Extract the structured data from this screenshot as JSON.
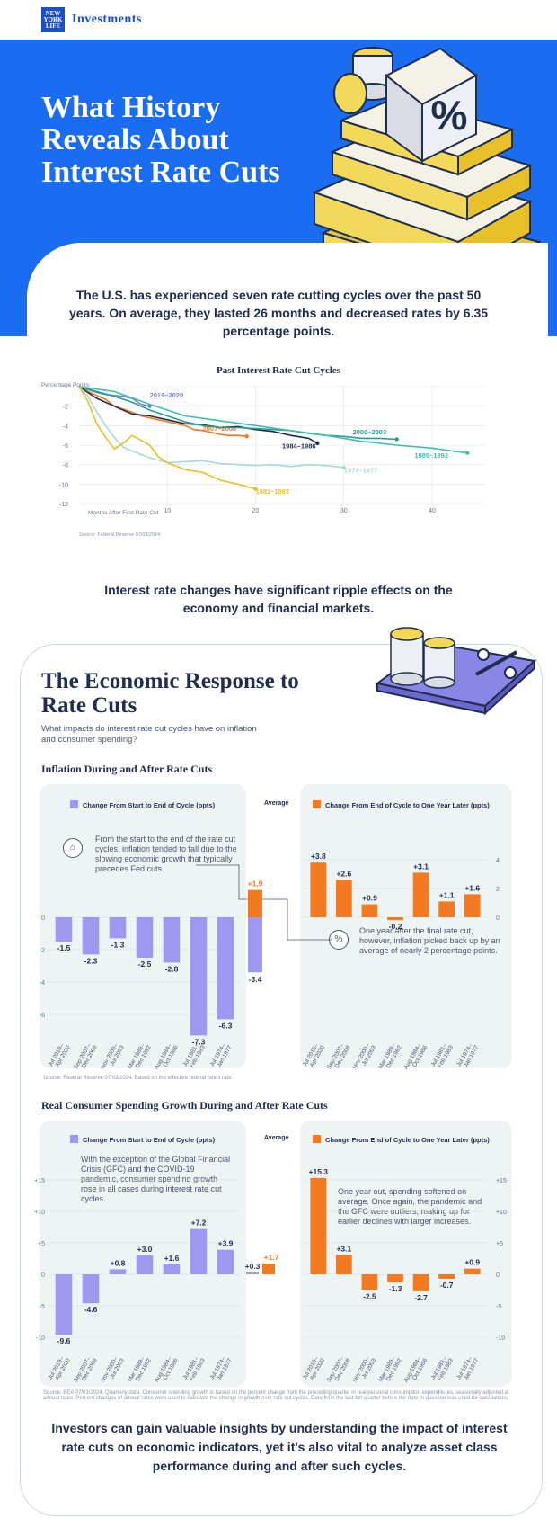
{
  "header": {
    "logo_text": "NEW YORK LIFE",
    "brand": "Investments"
  },
  "hero": {
    "title": "What History Reveals About Interest Rate Cuts"
  },
  "intro": {
    "text": "The U.S. has experienced seven rate cutting cycles over the past 50 years. On average, they lasted 26 months and decreased rates by 6.35 percentage points."
  },
  "ripple": {
    "text": "Interest rate changes have significant ripple effects on the economy and financial markets."
  },
  "economic": {
    "title": "The Economic Response to Rate Cuts",
    "subtitle": "What impacts do interest rate cut cycles have on inflation and consumer spending?"
  },
  "inflation": {
    "section_title": "Inflation During and After Rate Cuts",
    "left_legend": "Change From Start to End of Cycle (ppts)",
    "avg_legend": "Average",
    "right_legend": "Change From End of Cycle to One Year Later (ppts)",
    "annotation_left": "From the start to the end of the rate cut cycles, inflation tended to fall due to the slowing economic growth that typically precedes Fed cuts.",
    "annotation_right": "One year after the final rate cut, however, inflation picked back up by an average of nearly 2 percentage points.",
    "source": "Source: Federal Reserve 07/03/2024. Based on the effective federal funds rate."
  },
  "spending": {
    "section_title": "Real Consumer Spending Growth During and After Rate Cuts",
    "left_legend": "Change From Start to End of Cycle (ppts)",
    "avg_legend": "Average",
    "right_legend": "Change From End of Cycle to One Year Later (ppts)",
    "annotation_left": "With the exception of the Global Financial Crisis (GFC) and the COVID-19 pandemic, consumer spending growth rose in all cases during interest rate cut cycles.",
    "annotation_right": "One year out, spending softened on average. Once again, the pandemic and the GFC were outliers, making up for earlier declines with larger increases.",
    "source": "Source: BEA 07/03/2024. Quarterly data. Consumer spending growth is based on the percent change from the preceding quarter in real personal consumption expenditures, seasonally adjusted at annual rates. Percent changes of annual rates were used to calculate the change in growth over rate cut cycles. Data from the last full quarter before the date in question was used for calculations."
  },
  "bottom": {
    "text": "Investors can gain valuable insights by understanding the impact of interest rate cuts on economic indicators, yet it's also vital to analyze asset class performance during and after such cycles."
  },
  "colors": {
    "blue": "#1a6df0",
    "purple": "#9e99ee",
    "orange": "#f37a20",
    "teal": "#2ba89c"
  },
  "chart_data": [
    {
      "type": "line",
      "title": "Past Interest Rate Cut Cycles",
      "ylabel": "Percentage Points",
      "xlabel": "Months After First Rate Cut",
      "source": "Source: Federal Reserve 07/03/2024",
      "xlim": [
        0,
        46
      ],
      "ylim": [
        -12,
        0
      ],
      "xticks": [
        10,
        20,
        30,
        40
      ],
      "yticks": [
        -2,
        -4,
        -6,
        -8,
        -10,
        -12
      ],
      "series": [
        {
          "name": "2019–2020",
          "color": "#7d7fd6",
          "x": [
            0,
            1,
            2,
            3,
            4,
            5,
            6,
            7,
            8
          ],
          "y": [
            0,
            -0.3,
            -0.6,
            -0.8,
            -0.9,
            -1.0,
            -1.2,
            -1.8,
            -2.0
          ]
        },
        {
          "name": "2007–2008",
          "color": "#f37a20",
          "x": [
            0,
            1,
            2,
            3,
            4,
            5,
            6,
            7,
            8,
            9,
            10,
            11,
            12,
            13,
            14,
            15,
            16,
            17,
            18,
            19
          ],
          "y": [
            0,
            -0.5,
            -0.9,
            -1.3,
            -2.0,
            -2.3,
            -2.6,
            -3.0,
            -3.2,
            -3.4,
            -3.6,
            -3.8,
            -4.0,
            -4.4,
            -4.5,
            -4.7,
            -4.9,
            -5.0,
            -5.0,
            -5.1
          ]
        },
        {
          "name": "1984–1986",
          "color": "#1f2d4f",
          "x": [
            0,
            2,
            4,
            6,
            8,
            10,
            12,
            14,
            16,
            18,
            20,
            22,
            24,
            26,
            27
          ],
          "y": [
            0,
            -1.2,
            -2.0,
            -2.8,
            -3.0,
            -3.4,
            -3.8,
            -3.9,
            -4.2,
            -4.1,
            -4.4,
            -4.6,
            -5.0,
            -5.3,
            -5.8
          ]
        },
        {
          "name": "2000–2003",
          "color": "#2a9d8f",
          "x": [
            0,
            2,
            4,
            6,
            8,
            10,
            12,
            14,
            16,
            18,
            20,
            22,
            24,
            26,
            28,
            30,
            32,
            34,
            36
          ],
          "y": [
            0,
            -0.5,
            -1.0,
            -1.6,
            -2.4,
            -3.0,
            -3.6,
            -4.0,
            -4.2,
            -4.2,
            -4.3,
            -4.4,
            -4.5,
            -4.8,
            -5.0,
            -5.1,
            -5.3,
            -5.3,
            -5.4
          ]
        },
        {
          "name": "1989–1992",
          "color": "#3dbfb0",
          "x": [
            0,
            4,
            8,
            12,
            16,
            20,
            24,
            28,
            32,
            36,
            40,
            44
          ],
          "y": [
            0,
            -0.5,
            -1.8,
            -3.0,
            -3.5,
            -4.0,
            -4.5,
            -5.0,
            -5.6,
            -6.0,
            -6.3,
            -6.8
          ]
        },
        {
          "name": "1974–1977",
          "color": "#a8d8dc",
          "x": [
            0,
            1,
            2,
            3,
            4,
            5,
            6,
            8,
            10,
            12,
            14,
            16,
            18,
            20,
            22,
            24,
            26,
            28,
            30
          ],
          "y": [
            0,
            -1.0,
            -2.6,
            -4.0,
            -5.2,
            -6.2,
            -6.6,
            -7.3,
            -7.8,
            -7.7,
            -7.6,
            -7.9,
            -8.0,
            -8.1,
            -8.0,
            -8.2,
            -8.0,
            -8.1,
            -8.3
          ]
        },
        {
          "name": "1981–1983",
          "color": "#e8c12a",
          "x": [
            0,
            1,
            2,
            3,
            4,
            5,
            6,
            7,
            8,
            9,
            10,
            12,
            14,
            16,
            18,
            20
          ],
          "y": [
            0,
            -1.5,
            -3.8,
            -5.2,
            -6.4,
            -5.8,
            -5.0,
            -5.5,
            -6.0,
            -7.2,
            -7.8,
            -8.5,
            -8.8,
            -9.6,
            -10.0,
            -10.5
          ]
        }
      ]
    },
    {
      "type": "bar",
      "title": "Inflation During and After Rate Cuts",
      "categories": [
        "Jul 2019–Apr 2020",
        "Sep 2007–Dec 2008",
        "Nov 2000–Jul 2003",
        "Mar 1989–Dec 1992",
        "Aug 1984–Oct 1986",
        "Jul 1981–Feb 1983",
        "Jul 1974–Jan 1977"
      ],
      "series": [
        {
          "name": "Change From Start to End of Cycle (ppts)",
          "values": [
            -1.5,
            -2.3,
            -1.3,
            -2.5,
            -2.8,
            -7.3,
            -6.3
          ]
        },
        {
          "name": "Change From End of Cycle to One Year Later (ppts)",
          "values": [
            3.8,
            2.6,
            0.9,
            -0.2,
            3.1,
            1.1,
            1.6
          ]
        }
      ],
      "average": {
        "start_to_end": -3.4,
        "one_year_later": 1.9
      },
      "left_ylim": [
        -8,
        0
      ],
      "left_yticks": [
        0,
        -2,
        -4,
        -6
      ],
      "right_ylim": [
        -1,
        4.5
      ],
      "right_yticks": [
        4,
        2,
        0
      ]
    },
    {
      "type": "bar",
      "title": "Real Consumer Spending Growth During and After Rate Cuts",
      "categories": [
        "Jul 2019–Apr 2020",
        "Sep 2007–Dec 2008",
        "Nov 2000–Jul 2003",
        "Mar 1989–Dec 1992",
        "Aug 1984–Oct 1986",
        "Jul 1981–Feb 1983",
        "Jul 1974–Jan 1977"
      ],
      "series": [
        {
          "name": "Change From Start to End of Cycle (ppts)",
          "values": [
            -9.6,
            -4.6,
            0.8,
            3.0,
            1.6,
            7.2,
            3.9
          ]
        },
        {
          "name": "Change From End of Cycle to One Year Later (ppts)",
          "values": [
            15.3,
            3.1,
            -2.5,
            -1.3,
            -2.7,
            -0.7,
            0.9
          ]
        }
      ],
      "average": {
        "start_to_end": 0.3,
        "one_year_later": 1.7
      },
      "ylim": [
        -10,
        16
      ],
      "yticks": [
        15,
        10,
        5,
        0,
        -5,
        -10
      ]
    }
  ]
}
